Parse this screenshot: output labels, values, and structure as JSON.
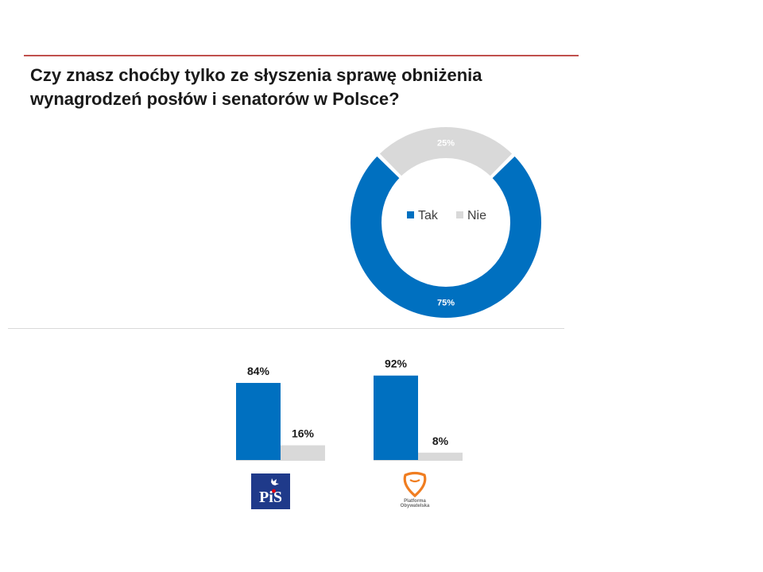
{
  "title": "Czy znasz choćby tylko ze słyszenia sprawę obniżenia wynagrodzeń posłów i senatorów w Polsce?",
  "colors": {
    "tak": "#0070c0",
    "nie": "#d9d9d9",
    "accent_rule": "#c0504d"
  },
  "chart_data": [
    {
      "type": "pie",
      "variant": "donut",
      "legend": "center",
      "categories": [
        "Tak",
        "Nie"
      ],
      "values": [
        75,
        25
      ],
      "labels": [
        "75%",
        "25%"
      ]
    },
    {
      "type": "bar",
      "group": "PiS",
      "categories": [
        "Tak",
        "Nie"
      ],
      "values": [
        84,
        16
      ],
      "labels": [
        "84%",
        "16%"
      ]
    },
    {
      "type": "bar",
      "group": "Platforma Obywatelska",
      "categories": [
        "Tak",
        "Nie"
      ],
      "values": [
        92,
        8
      ],
      "labels": [
        "92%",
        "8%"
      ]
    }
  ],
  "logos": {
    "pis": {
      "icon": "pis-logo",
      "text": "PiS"
    },
    "po": {
      "icon": "platforma-obywatelska-logo",
      "text_line1": "Platforma",
      "text_line2": "Obywatelska"
    }
  }
}
